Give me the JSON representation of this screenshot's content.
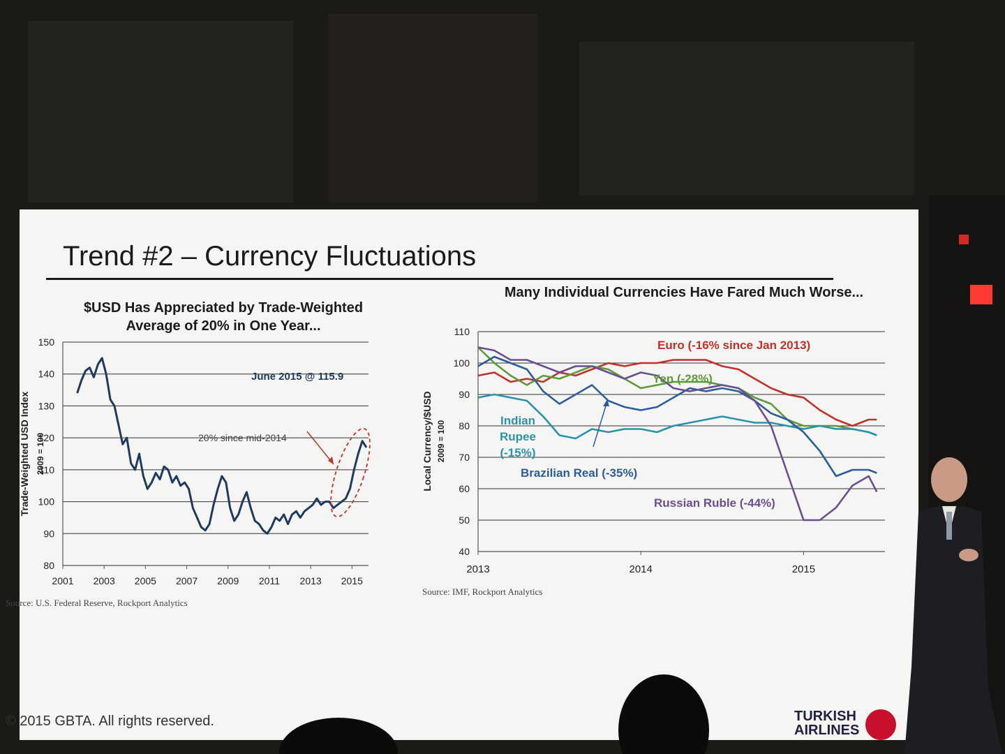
{
  "slide": {
    "title": "Trend #2 – Currency Fluctuations",
    "copyright": "© 2015 GBTA. All rights reserved.",
    "brand_line1": "TURKISH",
    "brand_line2": "AIRLINES"
  },
  "chart_data": [
    {
      "type": "line",
      "title": "$USD Has Appreciated by Trade-Weighted Average of 20% in One Year...",
      "ylabel": "Trade-Weighted USD Index",
      "ylabel2": "2009 = 100",
      "xlim": [
        2001,
        2015.8
      ],
      "ylim": [
        80,
        150
      ],
      "x_ticks": [
        "2001",
        "2003",
        "2005",
        "2007",
        "2009",
        "2011",
        "2013",
        "2015"
      ],
      "y_ticks": [
        "80",
        "90",
        "100",
        "110",
        "120",
        "130",
        "140",
        "150"
      ],
      "grid": true,
      "annotations": [
        "June 2015 @ 115.9",
        "20% since mid-2014"
      ],
      "source": "Source: U.S. Federal Reserve, Rockport Analytics",
      "color": "#1f3a5f",
      "series": [
        {
          "x": [
            2001.7,
            2001.9,
            2002.1,
            2002.3,
            2002.5,
            2002.7,
            2002.9,
            2003.1,
            2003.3,
            2003.5,
            2003.7,
            2003.9,
            2004.1,
            2004.3,
            2004.5,
            2004.7,
            2004.9,
            2005.1,
            2005.3,
            2005.5,
            2005.7,
            2005.9,
            2006.1,
            2006.3,
            2006.5,
            2006.7,
            2006.9,
            2007.1,
            2007.3,
            2007.5,
            2007.7,
            2007.9,
            2008.1,
            2008.3,
            2008.5,
            2008.7,
            2008.9,
            2009.1,
            2009.3,
            2009.5,
            2009.7,
            2009.9,
            2010.1,
            2010.3,
            2010.5,
            2010.7,
            2010.9,
            2011.1,
            2011.3,
            2011.5,
            2011.7,
            2011.9,
            2012.1,
            2012.3,
            2012.5,
            2012.7,
            2012.9,
            2013.1,
            2013.3,
            2013.5,
            2013.7,
            2013.9,
            2014.1,
            2014.3,
            2014.5,
            2014.7,
            2014.9,
            2015.1,
            2015.3,
            2015.5,
            2015.7
          ],
          "y": [
            134,
            138,
            141,
            142,
            139,
            143,
            145,
            140,
            132,
            130,
            124,
            118,
            120,
            112,
            110,
            115,
            108,
            104,
            106,
            109,
            107,
            111,
            110,
            106,
            108,
            105,
            106,
            104,
            98,
            95,
            92,
            91,
            93,
            99,
            104,
            108,
            106,
            98,
            94,
            96,
            100,
            103,
            98,
            94,
            93,
            91,
            90,
            92,
            95,
            94,
            96,
            93,
            96,
            97,
            95,
            97,
            98,
            99,
            101,
            99,
            100,
            100,
            98,
            99,
            100,
            101,
            104,
            110,
            115,
            119,
            117
          ]
        }
      ]
    },
    {
      "type": "line",
      "title": "Many Individual Currencies Have Fared Much Worse...",
      "ylabel": "Local Currency/$USD",
      "ylabel2": "2009 = 100",
      "xlim": [
        2013,
        2015.5
      ],
      "ylim": [
        40,
        110
      ],
      "x_ticks": [
        "2013",
        "2014",
        "2015"
      ],
      "y_ticks": [
        "40",
        "50",
        "60",
        "70",
        "80",
        "90",
        "100",
        "110"
      ],
      "grid": true,
      "source": "Source: IMF, Rockport Analytics",
      "series": [
        {
          "name": "Euro (-16% since Jan 2013)",
          "label_lines": [
            "Euro (-16% since Jan 2013)"
          ],
          "color": "#c0312b",
          "x": [
            2013.0,
            2013.1,
            2013.2,
            2013.3,
            2013.4,
            2013.5,
            2013.6,
            2013.7,
            2013.8,
            2013.9,
            2014.0,
            2014.1,
            2014.2,
            2014.3,
            2014.4,
            2014.5,
            2014.6,
            2014.7,
            2014.8,
            2014.9,
            2015.0,
            2015.1,
            2015.2,
            2015.3,
            2015.4,
            2015.45
          ],
          "y": [
            96,
            97,
            94,
            95,
            94,
            97,
            96,
            98,
            100,
            99,
            100,
            100,
            101,
            101,
            101,
            99,
            98,
            95,
            92,
            90,
            89,
            85,
            82,
            80,
            82,
            82
          ]
        },
        {
          "name": "Yen (-28%)",
          "label_lines": [
            "Yen (-28%)"
          ],
          "color": "#5c9a3a",
          "x": [
            2013.0,
            2013.1,
            2013.2,
            2013.3,
            2013.4,
            2013.5,
            2013.6,
            2013.7,
            2013.8,
            2013.9,
            2014.0,
            2014.1,
            2014.2,
            2014.3,
            2014.4,
            2014.5,
            2014.6,
            2014.7,
            2014.8,
            2014.9,
            2015.0,
            2015.1,
            2015.2,
            2015.3,
            2015.4,
            2015.45
          ],
          "y": [
            105,
            100,
            96,
            93,
            96,
            95,
            97,
            99,
            98,
            95,
            92,
            93,
            94,
            94,
            94,
            93,
            92,
            89,
            87,
            82,
            80,
            80,
            80,
            79,
            78,
            77
          ]
        },
        {
          "name": "Indian Rupee (-15%)",
          "label_lines": [
            "Indian",
            "Rupee",
            "(-15%)"
          ],
          "color": "#2a93a8",
          "x": [
            2013.0,
            2013.1,
            2013.2,
            2013.3,
            2013.4,
            2013.5,
            2013.6,
            2013.7,
            2013.8,
            2013.9,
            2014.0,
            2014.1,
            2014.2,
            2014.3,
            2014.4,
            2014.5,
            2014.6,
            2014.7,
            2014.8,
            2014.9,
            2015.0,
            2015.1,
            2015.2,
            2015.3,
            2015.4,
            2015.45
          ],
          "y": [
            89,
            90,
            89,
            88,
            83,
            77,
            76,
            79,
            78,
            79,
            79,
            78,
            80,
            81,
            82,
            83,
            82,
            81,
            81,
            80,
            79,
            80,
            79,
            79,
            78,
            77
          ]
        },
        {
          "name": "Brazilian Real (-35%)",
          "label_lines": [
            "Brazilian Real (-35%)"
          ],
          "color": "#2c5d9a",
          "x": [
            2013.0,
            2013.1,
            2013.2,
            2013.3,
            2013.4,
            2013.5,
            2013.6,
            2013.7,
            2013.8,
            2013.9,
            2014.0,
            2014.1,
            2014.2,
            2014.3,
            2014.4,
            2014.5,
            2014.6,
            2014.7,
            2014.8,
            2014.9,
            2015.0,
            2015.1,
            2015.2,
            2015.3,
            2015.4,
            2015.45
          ],
          "y": [
            99,
            102,
            100,
            98,
            91,
            87,
            90,
            93,
            88,
            86,
            85,
            86,
            89,
            92,
            91,
            92,
            91,
            88,
            84,
            82,
            78,
            72,
            64,
            66,
            66,
            65
          ]
        },
        {
          "name": "Russian Ruble (-44%)",
          "label_lines": [
            "Russian Ruble (-44%)"
          ],
          "color": "#6a4e8f",
          "x": [
            2013.0,
            2013.1,
            2013.2,
            2013.3,
            2013.4,
            2013.5,
            2013.6,
            2013.7,
            2013.8,
            2013.9,
            2014.0,
            2014.1,
            2014.2,
            2014.3,
            2014.4,
            2014.5,
            2014.6,
            2014.7,
            2014.8,
            2014.9,
            2015.0,
            2015.1,
            2015.2,
            2015.3,
            2015.4,
            2015.45
          ],
          "y": [
            105,
            104,
            101,
            101,
            99,
            97,
            99,
            99,
            97,
            95,
            97,
            96,
            92,
            91,
            92,
            93,
            92,
            88,
            80,
            65,
            50,
            50,
            54,
            61,
            64,
            59
          ]
        }
      ]
    }
  ]
}
